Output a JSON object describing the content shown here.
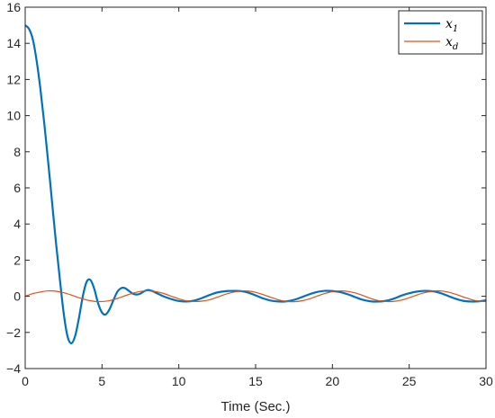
{
  "chart_data": {
    "type": "line",
    "title": "",
    "xlabel": "Time (Sec.)",
    "ylabel": "",
    "xlim": [
      0,
      30
    ],
    "ylim": [
      -4,
      16
    ],
    "xticks": [
      0,
      5,
      10,
      15,
      20,
      25,
      30
    ],
    "yticks": [
      -4,
      -2,
      0,
      2,
      4,
      6,
      8,
      10,
      12,
      14,
      16
    ],
    "grid": false,
    "legend": {
      "position": "top-right"
    },
    "series": [
      {
        "name": "x1",
        "name_base": "x",
        "name_sub": "1",
        "color": "#0072BD",
        "x": [
          0,
          0.25,
          0.5,
          0.75,
          1.0,
          1.25,
          1.5,
          1.75,
          2.0,
          2.25,
          2.5,
          2.75,
          3.0,
          3.25,
          3.5,
          3.75,
          4.0,
          4.25,
          4.5,
          4.75,
          5.0,
          5.25,
          5.5,
          5.75,
          6.0,
          6.25,
          6.5,
          6.75,
          7.0,
          7.25,
          7.5,
          7.75,
          8.0,
          8.25,
          8.5,
          8.75,
          9.0,
          9.5,
          10.0,
          10.5,
          11.0,
          11.5,
          12.0,
          12.5,
          13.0,
          13.5,
          14.0,
          14.5,
          15.0,
          15.5,
          16.0,
          16.5,
          17.0,
          17.5,
          18.0,
          18.5,
          19.0,
          19.5,
          20.0,
          20.5,
          21.0,
          21.5,
          22.0,
          22.5,
          23.0,
          23.5,
          24.0,
          24.5,
          25.0,
          25.5,
          26.0,
          26.5,
          27.0,
          27.5,
          28.0,
          28.5,
          29.0,
          29.5,
          30.0
        ],
        "values": [
          15.0,
          14.8,
          14.2,
          13.0,
          11.4,
          9.5,
          7.4,
          5.2,
          3.0,
          1.0,
          -0.9,
          -2.2,
          -2.6,
          -2.2,
          -1.2,
          0.0,
          0.8,
          0.9,
          0.4,
          -0.4,
          -0.9,
          -1.0,
          -0.7,
          -0.2,
          0.25,
          0.45,
          0.45,
          0.3,
          0.15,
          0.1,
          0.15,
          0.28,
          0.35,
          0.3,
          0.2,
          0.1,
          0.0,
          -0.15,
          -0.26,
          -0.29,
          -0.24,
          -0.1,
          0.07,
          0.21,
          0.28,
          0.3,
          0.29,
          0.21,
          0.05,
          -0.12,
          -0.24,
          -0.29,
          -0.28,
          -0.2,
          -0.05,
          0.11,
          0.24,
          0.3,
          0.29,
          0.23,
          0.11,
          -0.05,
          -0.2,
          -0.28,
          -0.29,
          -0.25,
          -0.13,
          0.04,
          0.17,
          0.26,
          0.3,
          0.28,
          0.19,
          0.03,
          -0.13,
          -0.25,
          -0.29,
          -0.28,
          -0.22
        ]
      },
      {
        "name": "xd",
        "name_base": "x",
        "name_sub": "d",
        "color": "#D95319",
        "x": [
          0,
          0.5,
          1.0,
          1.5,
          2.0,
          2.5,
          3.0,
          3.5,
          4.0,
          4.5,
          5.0,
          5.5,
          6.0,
          6.5,
          7.0,
          7.5,
          8.0,
          8.5,
          9.0,
          9.5,
          10.0,
          10.5,
          11.0,
          11.5,
          12.0,
          12.5,
          13.0,
          13.5,
          14.0,
          14.5,
          15.0,
          15.5,
          16.0,
          16.5,
          17.0,
          17.5,
          18.0,
          18.5,
          19.0,
          19.5,
          20.0,
          20.5,
          21.0,
          21.5,
          22.0,
          22.5,
          23.0,
          23.5,
          24.0,
          24.5,
          25.0,
          25.5,
          26.0,
          26.5,
          27.0,
          27.5,
          28.0,
          28.5,
          29.0,
          29.5,
          30.0
        ],
        "values": [
          0.0,
          0.15,
          0.24,
          0.3,
          0.28,
          0.2,
          0.07,
          -0.08,
          -0.2,
          -0.28,
          -0.29,
          -0.24,
          -0.12,
          0.03,
          0.17,
          0.27,
          0.3,
          0.26,
          0.16,
          0.01,
          -0.14,
          -0.25,
          -0.29,
          -0.27,
          -0.19,
          -0.05,
          0.1,
          0.22,
          0.29,
          0.29,
          0.22,
          0.09,
          -0.06,
          -0.2,
          -0.28,
          -0.3,
          -0.25,
          -0.14,
          0.01,
          0.15,
          0.26,
          0.3,
          0.27,
          0.18,
          0.04,
          -0.12,
          -0.24,
          -0.29,
          -0.28,
          -0.21,
          -0.08,
          0.07,
          0.2,
          0.28,
          0.3,
          0.24,
          0.12,
          -0.03,
          -0.17,
          -0.27,
          -0.29
        ]
      }
    ]
  }
}
